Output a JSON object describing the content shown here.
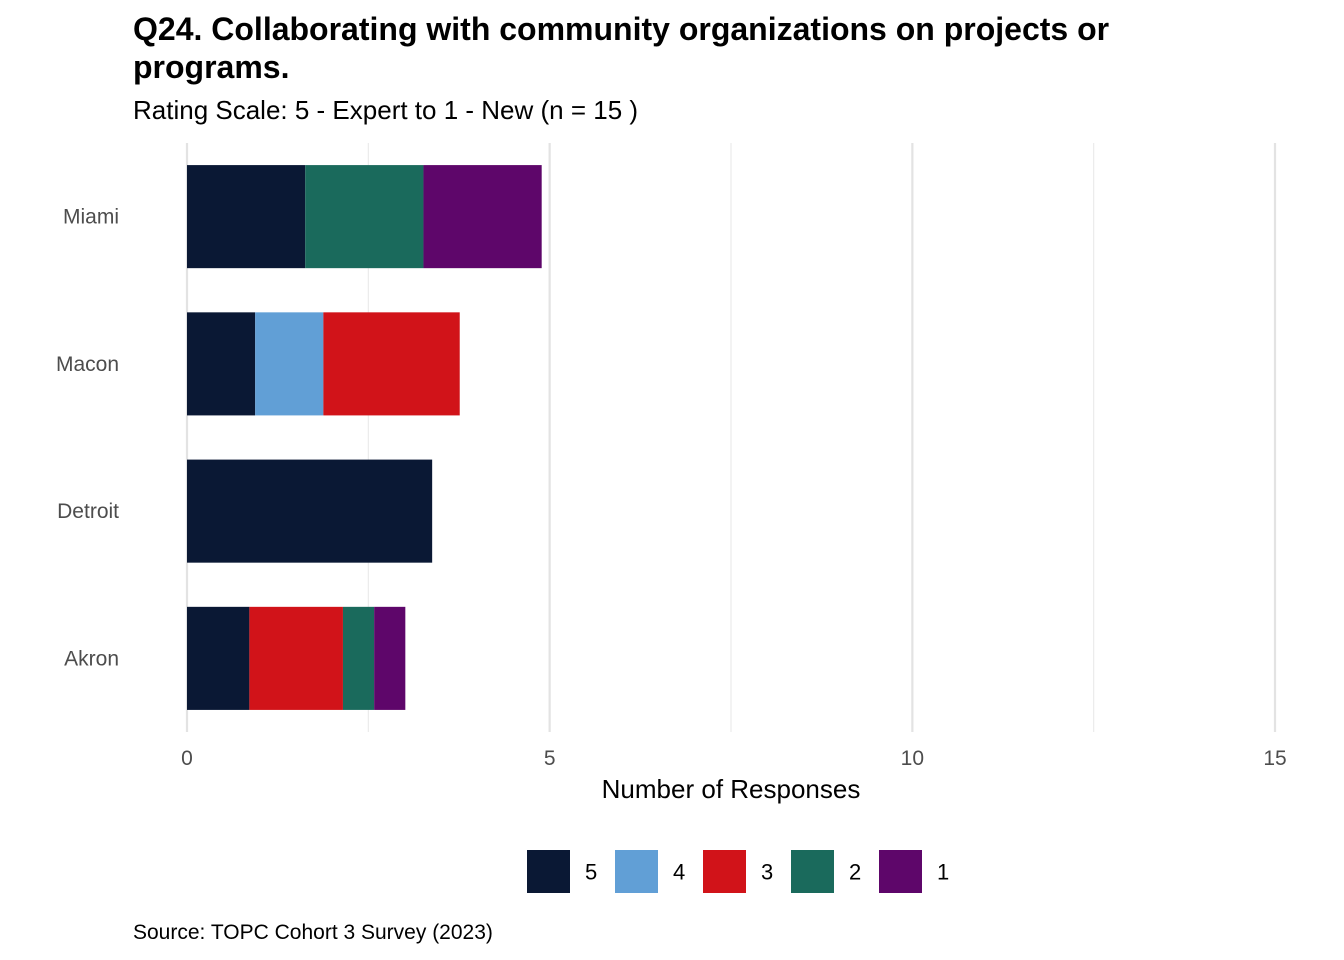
{
  "chart_data": {
    "type": "bar",
    "orientation": "horizontal",
    "stacked": true,
    "title": "Q24. Collaborating with community organizations on projects or programs.",
    "subtitle": "Rating Scale: 5 - Expert to 1 - New (n = 15 )",
    "xlabel": "Number of Responses",
    "ylabel": "",
    "xlim": [
      0,
      15
    ],
    "xticks": [
      0,
      5,
      10,
      15
    ],
    "grid": true,
    "legend_position": "bottom",
    "categories": [
      "Miami",
      "Macon",
      "Detroit",
      "Akron"
    ],
    "series": [
      {
        "name": "5",
        "color": "#0a1834",
        "values": [
          1.63,
          0.94,
          3.38,
          0.86
        ]
      },
      {
        "name": "4",
        "color": "#619fd6",
        "values": [
          0,
          0.94,
          0,
          0
        ]
      },
      {
        "name": "3",
        "color": "#d11319",
        "values": [
          0,
          1.88,
          0,
          1.29
        ]
      },
      {
        "name": "2",
        "color": "#1a6a5c",
        "values": [
          1.63,
          0,
          0,
          0.43
        ]
      },
      {
        "name": "1",
        "color": "#5e066a",
        "values": [
          1.63,
          0,
          0,
          0.43
        ]
      }
    ],
    "source": "Source: TOPC Cohort 3 Survey (2023)"
  }
}
